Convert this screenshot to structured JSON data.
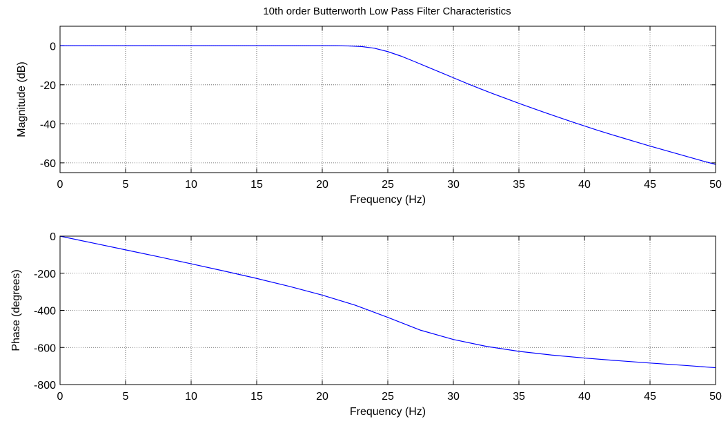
{
  "chart_data": [
    {
      "type": "line",
      "title": "10th order Butterworth Low Pass Filter Characteristics",
      "xlabel": "Frequency (Hz)",
      "ylabel": "Magnitude (dB)",
      "xlim": [
        0,
        50
      ],
      "ylim": [
        -65,
        10
      ],
      "xticks": [
        0,
        5,
        10,
        15,
        20,
        25,
        30,
        35,
        40,
        45,
        50
      ],
      "yticks": [
        0,
        -20,
        -40,
        -60
      ],
      "grid": true,
      "line_color": "#0000ff",
      "series": [
        {
          "x": [
            0,
            5,
            10,
            15,
            20,
            21,
            22,
            23,
            24,
            25,
            26,
            27,
            28,
            29,
            30,
            31,
            32,
            33,
            34,
            35,
            36,
            37,
            38,
            39,
            40,
            41,
            42,
            43,
            44,
            45,
            46,
            47,
            48,
            49,
            50
          ],
          "values": [
            0,
            0,
            0,
            0,
            0,
            0,
            -0.1,
            -0.4,
            -1.3,
            -3,
            -5.3,
            -8,
            -10.8,
            -13.6,
            -16.4,
            -19.2,
            -21.9,
            -24.5,
            -27,
            -29.5,
            -31.9,
            -34.3,
            -36.6,
            -38.9,
            -41.1,
            -43.3,
            -45.4,
            -47.4,
            -49.4,
            -51.4,
            -53.3,
            -55.2,
            -57.1,
            -59,
            -60.8
          ]
        }
      ]
    },
    {
      "type": "line",
      "title": "",
      "xlabel": "Frequency (Hz)",
      "ylabel": "Phase (degrees)",
      "xlim": [
        0,
        50
      ],
      "ylim": [
        -800,
        0
      ],
      "xticks": [
        0,
        5,
        10,
        15,
        20,
        25,
        30,
        35,
        40,
        45,
        50
      ],
      "yticks": [
        0,
        -200,
        -400,
        -600,
        -800
      ],
      "grid": true,
      "line_color": "#0000ff",
      "series": [
        {
          "x": [
            0,
            2.5,
            5,
            7.5,
            10,
            12.5,
            15,
            17.5,
            20,
            22.5,
            25,
            27.5,
            30,
            32.5,
            35,
            37.5,
            40,
            42.5,
            45,
            47.5,
            50
          ],
          "values": [
            0,
            -37,
            -74,
            -111,
            -149,
            -188,
            -228,
            -271,
            -318,
            -372,
            -438,
            -507,
            -557,
            -594,
            -621,
            -641,
            -657,
            -671,
            -684,
            -696,
            -709
          ]
        }
      ]
    }
  ]
}
